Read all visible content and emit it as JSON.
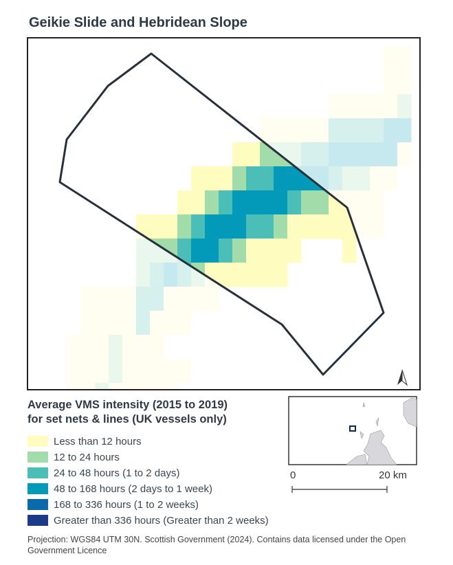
{
  "title": "Geikie Slide and Hebridean Slope",
  "legend": {
    "title_line1": "Average VMS intensity (2015 to 2019)",
    "title_line2": "for set nets & lines (UK vessels only)",
    "items": [
      {
        "label": "Less than 12 hours",
        "color": "#fffcc0"
      },
      {
        "label": "12 to 24 hours",
        "color": "#a2dcab"
      },
      {
        "label": "24 to 48 hours (1 to 2 days)",
        "color": "#4bbfb7"
      },
      {
        "label": "48 to 168 hours (2 days to 1 week)",
        "color": "#0399b9"
      },
      {
        "label": "168 to 336 hours (1 to 2 weeks)",
        "color": "#0a6aac"
      },
      {
        "label": "Greater than 336 hours (Greater than 2 weeks)",
        "color": "#1b3a8c"
      }
    ]
  },
  "scale_bar": {
    "start": "0",
    "end": "20 km"
  },
  "north_arrow": "north-arrow-icon",
  "footer": "Projection: WGS84 UTM 30N. Scottish Government (2024). Contains data licensed under the Open Government Licence"
}
